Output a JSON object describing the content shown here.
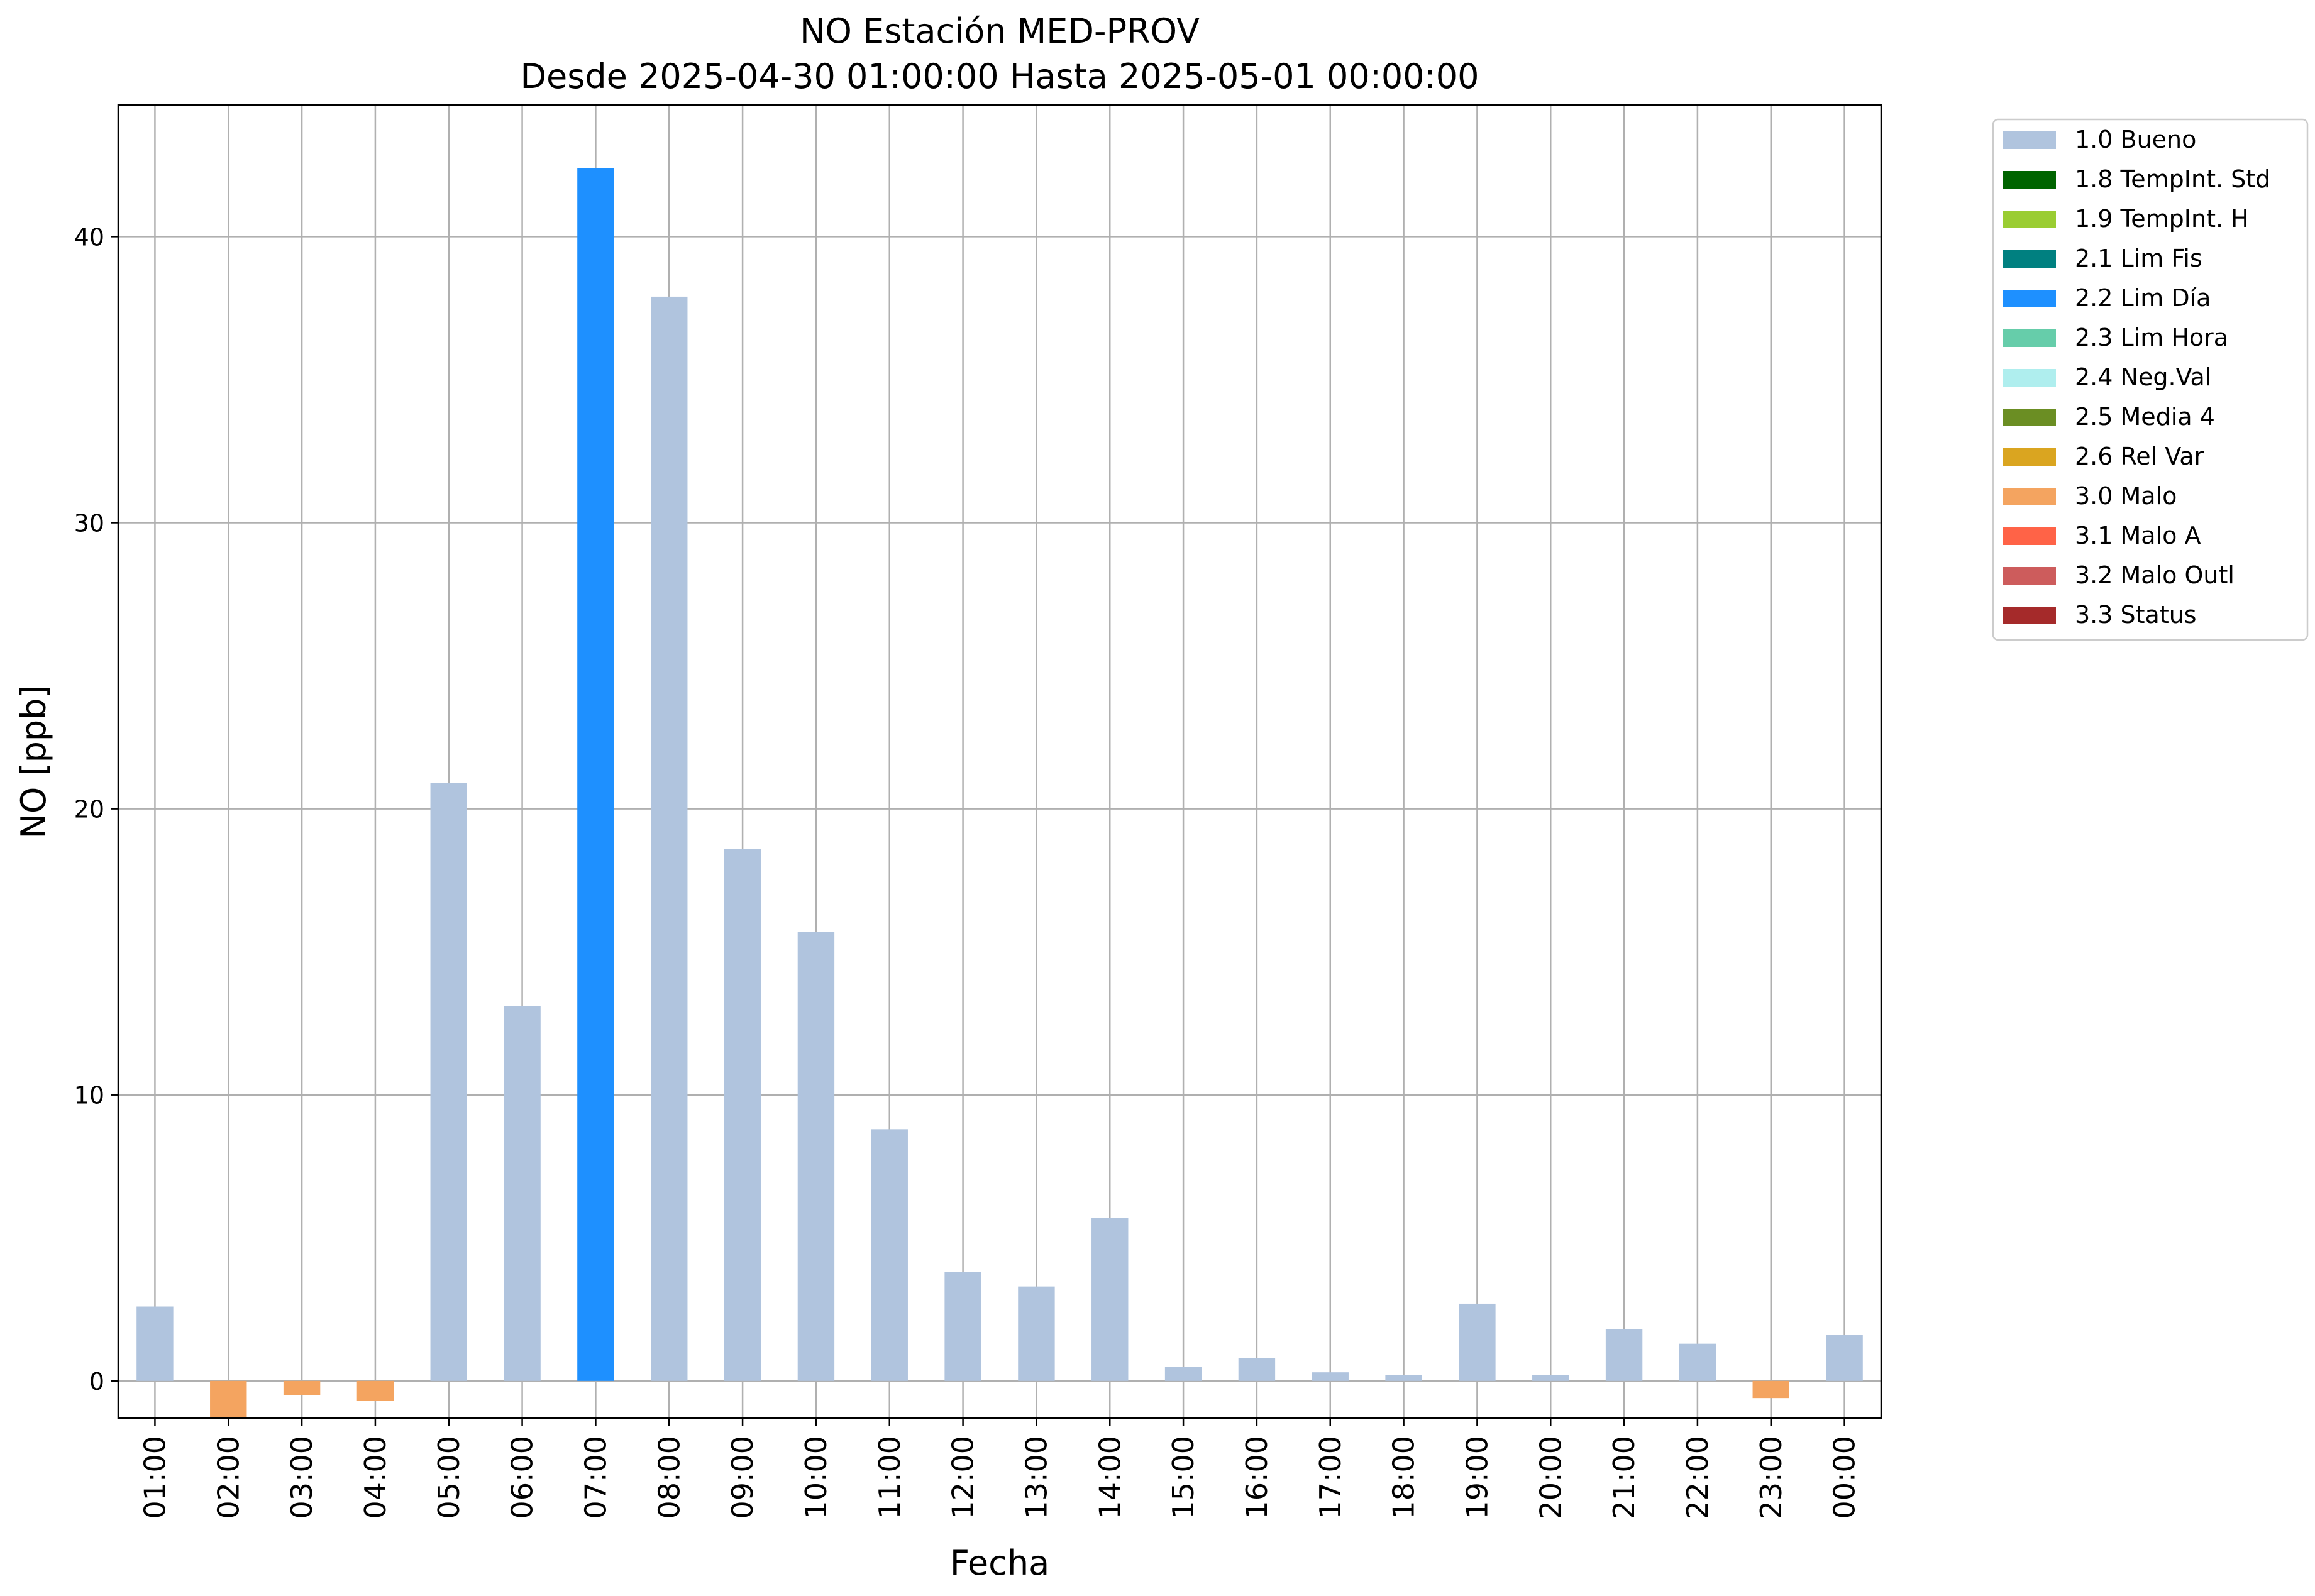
{
  "chart_data": {
    "type": "bar",
    "title": "NO Estación MED-PROV",
    "subtitle": "Desde 2025-04-30 01:00:00 Hasta 2025-05-01 00:00:00",
    "xlabel": "Fecha",
    "ylabel": "NO [ppb]",
    "ylim": [
      -1.3,
      44.6
    ],
    "yticks": [
      0,
      10,
      20,
      30,
      40
    ],
    "grid": true,
    "legend_position": "outside-top-right",
    "categories": [
      "01:00",
      "02:00",
      "03:00",
      "04:00",
      "05:00",
      "06:00",
      "07:00",
      "08:00",
      "09:00",
      "10:00",
      "11:00",
      "12:00",
      "13:00",
      "14:00",
      "15:00",
      "16:00",
      "17:00",
      "18:00",
      "19:00",
      "20:00",
      "21:00",
      "22:00",
      "23:00",
      "00:00"
    ],
    "values": [
      2.6,
      -1.3,
      -0.5,
      -0.7,
      20.9,
      13.1,
      42.4,
      37.9,
      18.6,
      15.7,
      8.8,
      3.8,
      3.3,
      5.7,
      0.5,
      0.8,
      0.3,
      0.2,
      2.7,
      0.2,
      1.8,
      1.3,
      -0.6,
      1.6
    ],
    "flags": [
      "1.0 Bueno",
      "3.0 Malo",
      "3.0 Malo",
      "3.0 Malo",
      "1.0 Bueno",
      "1.0 Bueno",
      "2.2 Lim Día",
      "1.0 Bueno",
      "1.0 Bueno",
      "1.0 Bueno",
      "1.0 Bueno",
      "1.0 Bueno",
      "1.0 Bueno",
      "1.0 Bueno",
      "1.0 Bueno",
      "1.0 Bueno",
      "1.0 Bueno",
      "1.0 Bueno",
      "1.0 Bueno",
      "1.0 Bueno",
      "1.0 Bueno",
      "1.0 Bueno",
      "3.0 Malo",
      "1.0 Bueno"
    ],
    "legend": [
      {
        "label": "1.0 Bueno",
        "color": "#b0c4de"
      },
      {
        "label": "1.8 TempInt. Std",
        "color": "#006400"
      },
      {
        "label": "1.9 TempInt. H",
        "color": "#9acd32"
      },
      {
        "label": "2.1 Lim Fis",
        "color": "#008080"
      },
      {
        "label": "2.2 Lim Día",
        "color": "#1e90ff"
      },
      {
        "label": "2.3 Lim Hora",
        "color": "#66cdaa"
      },
      {
        "label": "2.4 Neg.Val",
        "color": "#afeeee"
      },
      {
        "label": "2.5 Media 4",
        "color": "#6b8e23"
      },
      {
        "label": "2.6 Rel Var",
        "color": "#daa520"
      },
      {
        "label": "3.0 Malo",
        "color": "#f4a460"
      },
      {
        "label": "3.1 Malo A",
        "color": "#ff6347"
      },
      {
        "label": "3.2 Malo Outl",
        "color": "#cd5c5c"
      },
      {
        "label": "3.3 Status",
        "color": "#a52a2a"
      }
    ]
  }
}
